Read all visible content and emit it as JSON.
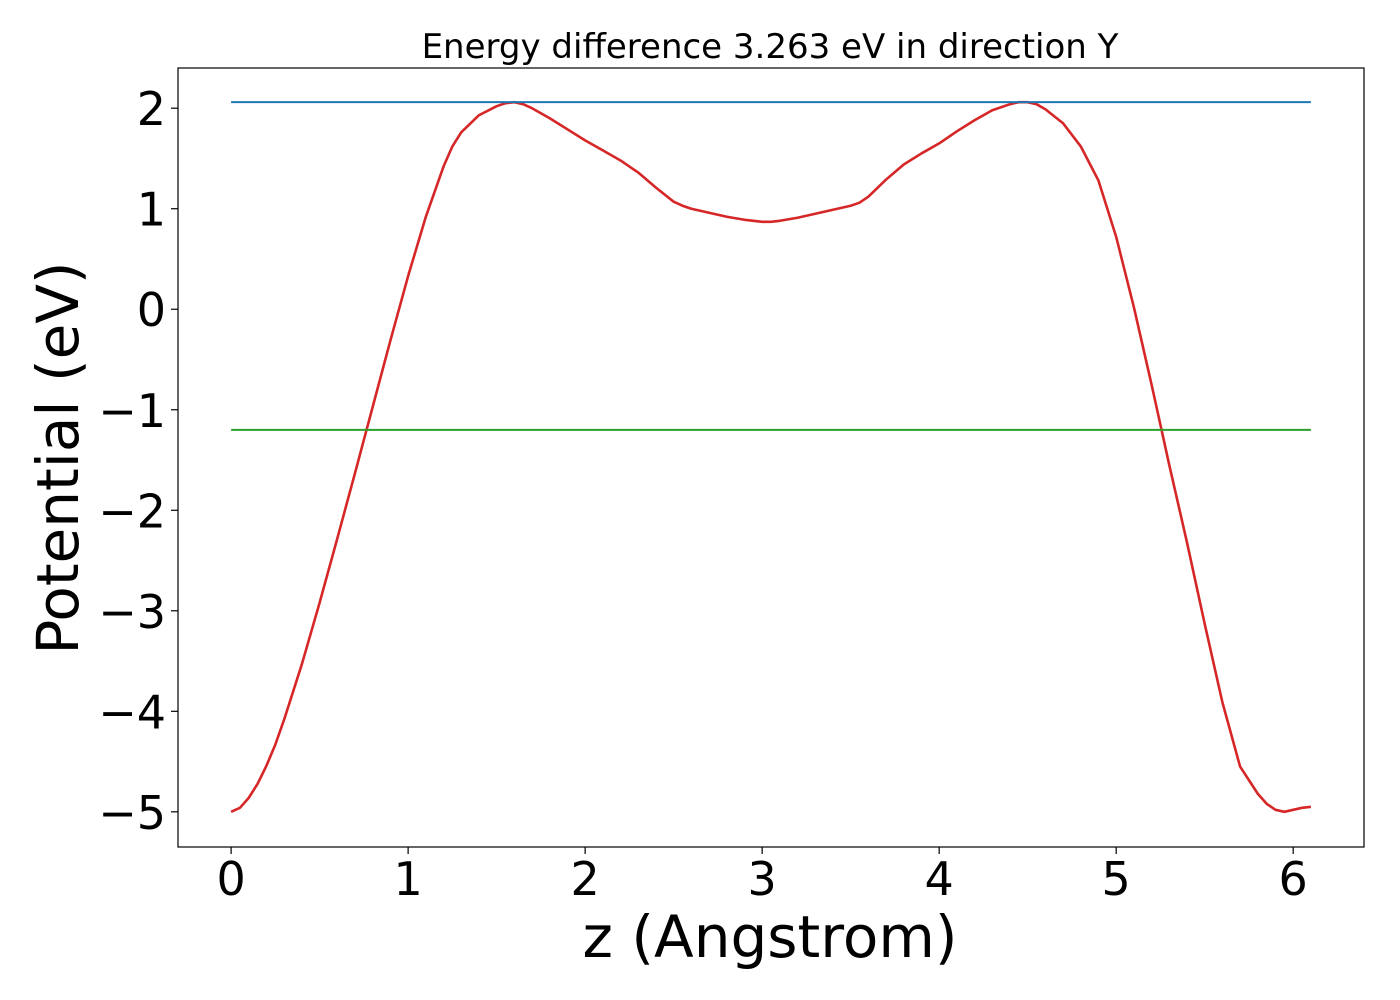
{
  "chart_data": {
    "type": "line",
    "title": "Energy difference 3.263 eV in direction Y",
    "xlabel": "z (Angstrom)",
    "ylabel": "Potential (eV)",
    "xlim": [
      -0.3,
      6.4
    ],
    "ylim": [
      -5.35,
      2.4
    ],
    "xticks": [
      0,
      1,
      2,
      3,
      4,
      5,
      6
    ],
    "yticks": [
      -5,
      -4,
      -3,
      -2,
      -1,
      0,
      1,
      2
    ],
    "grid": false,
    "legend": "none",
    "series": [
      {
        "color": "#d62728",
        "x": [
          0,
          0.05,
          0.1,
          0.15,
          0.2,
          0.25,
          0.3,
          0.4,
          0.5,
          0.6,
          0.7,
          0.8,
          0.9,
          1.0,
          1.1,
          1.2,
          1.25,
          1.3,
          1.4,
          1.5,
          1.55,
          1.6,
          1.65,
          1.7,
          1.8,
          1.9,
          2.0,
          2.1,
          2.2,
          2.3,
          2.4,
          2.5,
          2.55,
          2.6,
          2.7,
          2.8,
          2.9,
          3.0,
          3.05,
          3.1,
          3.2,
          3.3,
          3.4,
          3.5,
          3.55,
          3.6,
          3.7,
          3.8,
          3.9,
          4.0,
          4.1,
          4.2,
          4.3,
          4.4,
          4.45,
          4.5,
          4.55,
          4.6,
          4.7,
          4.8,
          4.85,
          4.9,
          5.0,
          5.1,
          5.2,
          5.3,
          5.4,
          5.5,
          5.6,
          5.7,
          5.8,
          5.85,
          5.9,
          5.95,
          6.0,
          6.05,
          6.1
        ],
        "y": [
          -5.0,
          -4.96,
          -4.86,
          -4.72,
          -4.54,
          -4.33,
          -4.08,
          -3.53,
          -2.92,
          -2.28,
          -1.63,
          -0.97,
          -0.31,
          0.33,
          0.92,
          1.42,
          1.62,
          1.76,
          1.93,
          2.02,
          2.05,
          2.06,
          2.04,
          2.0,
          1.9,
          1.79,
          1.68,
          1.58,
          1.48,
          1.36,
          1.21,
          1.07,
          1.03,
          1.0,
          0.96,
          0.92,
          0.89,
          0.87,
          0.87,
          0.88,
          0.91,
          0.95,
          0.99,
          1.03,
          1.06,
          1.12,
          1.29,
          1.44,
          1.55,
          1.65,
          1.77,
          1.88,
          1.98,
          2.04,
          2.06,
          2.06,
          2.04,
          1.99,
          1.85,
          1.62,
          1.45,
          1.28,
          0.72,
          0.02,
          -0.75,
          -1.55,
          -2.32,
          -3.13,
          -3.91,
          -4.55,
          -4.82,
          -4.92,
          -4.98,
          -5.0,
          -4.98,
          -4.96,
          -4.95
        ]
      },
      {
        "color": "#1f77b4",
        "x": [
          0,
          6.1
        ],
        "y": [
          2.06,
          2.06
        ]
      },
      {
        "color": "#2ca02c",
        "x": [
          0,
          6.1
        ],
        "y": [
          -1.2,
          -1.2
        ]
      }
    ]
  }
}
